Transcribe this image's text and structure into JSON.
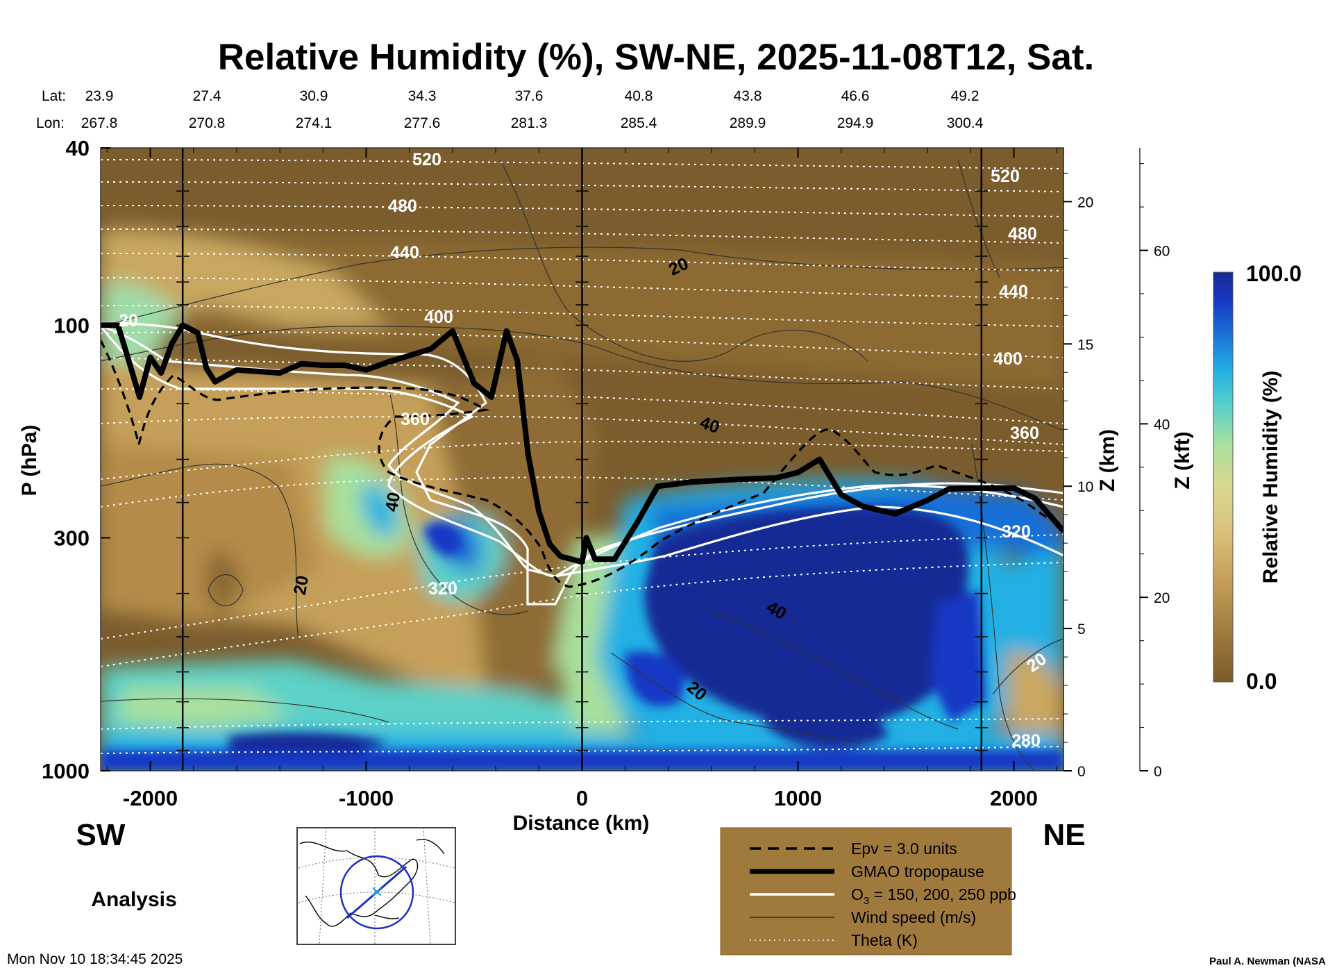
{
  "chart_data": {
    "type": "heatmap",
    "title": "Relative Humidity (%), SW-NE, 2025-11-08T12, Sat.",
    "xlabel": "Distance (km)",
    "ylabel": "P (hPa)",
    "ylabel_right_km": "Z (km)",
    "ylabel_right_kft": "Z (kft)",
    "xlim": [
      -2230,
      2230
    ],
    "ylim_hpa": [
      1000,
      40
    ],
    "x_ticks": [
      {
        "value": -2000,
        "label": "-2000"
      },
      {
        "value": -1000,
        "label": "-1000"
      },
      {
        "value": 0,
        "label": "0"
      },
      {
        "value": 1000,
        "label": "1000"
      },
      {
        "value": 2000,
        "label": "2000"
      }
    ],
    "y_ticks_hpa": [
      {
        "value": 40,
        "label": "40"
      },
      {
        "value": 100,
        "label": "100"
      },
      {
        "value": 300,
        "label": "300"
      },
      {
        "value": 1000,
        "label": "1000"
      }
    ],
    "z_km_ticks": [
      {
        "value": 0,
        "label": "0"
      },
      {
        "value": 5,
        "label": "5"
      },
      {
        "value": 10,
        "label": "10"
      },
      {
        "value": 15,
        "label": "15"
      },
      {
        "value": 20,
        "label": "20"
      }
    ],
    "z_kft_ticks": [
      {
        "value": 0,
        "label": "0"
      },
      {
        "value": 20,
        "label": "20"
      },
      {
        "value": 40,
        "label": "40"
      },
      {
        "value": 60,
        "label": "60"
      }
    ],
    "lat_label": "Lat:",
    "lon_label": "Lon:",
    "latlon": [
      {
        "lat": "23.9",
        "lon": "267.8"
      },
      {
        "lat": "27.4",
        "lon": "270.8"
      },
      {
        "lat": "30.9",
        "lon": "274.1"
      },
      {
        "lat": "34.3",
        "lon": "277.6"
      },
      {
        "lat": "37.6",
        "lon": "281.3"
      },
      {
        "lat": "40.8",
        "lon": "285.4"
      },
      {
        "lat": "43.8",
        "lon": "289.9"
      },
      {
        "lat": "46.6",
        "lon": "294.9"
      },
      {
        "lat": "49.2",
        "lon": "300.4"
      }
    ],
    "vertical_markers_km": [
      -1850,
      0,
      1850
    ],
    "theta_levels": [
      {
        "value": 280,
        "label": "280"
      },
      {
        "value": 320,
        "label": "320"
      },
      {
        "value": 360,
        "label": "360"
      },
      {
        "value": 400,
        "label": "400"
      },
      {
        "value": 440,
        "label": "440"
      },
      {
        "value": 480,
        "label": "480"
      },
      {
        "value": 520,
        "label": "520"
      }
    ],
    "wind_speed_labels": [
      "20",
      "20",
      "20",
      "40",
      "40",
      "40",
      "20",
      "20"
    ],
    "tropopause_hpa": [
      [
        -2230,
        100
      ],
      [
        -2150,
        100
      ],
      [
        -2100,
        120
      ],
      [
        -2050,
        145
      ],
      [
        -2000,
        118
      ],
      [
        -1950,
        128
      ],
      [
        -1900,
        110
      ],
      [
        -1850,
        100
      ],
      [
        -1780,
        104
      ],
      [
        -1740,
        125
      ],
      [
        -1700,
        134
      ],
      [
        -1600,
        126
      ],
      [
        -1500,
        127
      ],
      [
        -1400,
        128
      ],
      [
        -1300,
        122
      ],
      [
        -1200,
        123
      ],
      [
        -1100,
        123
      ],
      [
        -1000,
        126
      ],
      [
        -900,
        121
      ],
      [
        -800,
        117
      ],
      [
        -700,
        113
      ],
      [
        -600,
        103
      ],
      [
        -500,
        135
      ],
      [
        -420,
        145
      ],
      [
        -350,
        103
      ],
      [
        -300,
        120
      ],
      [
        -250,
        195
      ],
      [
        -200,
        262
      ],
      [
        -150,
        310
      ],
      [
        -100,
        330
      ],
      [
        -50,
        335
      ],
      [
        0,
        340
      ],
      [
        20,
        300
      ],
      [
        60,
        335
      ],
      [
        150,
        335
      ],
      [
        250,
        280
      ],
      [
        350,
        230
      ],
      [
        500,
        225
      ],
      [
        700,
        222
      ],
      [
        900,
        220
      ],
      [
        1000,
        214
      ],
      [
        1100,
        200
      ],
      [
        1200,
        240
      ],
      [
        1300,
        255
      ],
      [
        1450,
        265
      ],
      [
        1600,
        247
      ],
      [
        1700,
        233
      ],
      [
        1850,
        232
      ],
      [
        2000,
        232
      ],
      [
        2100,
        245
      ],
      [
        2230,
        290
      ]
    ],
    "colorbar": {
      "label": "Relative Humidity (%)",
      "min": 0.0,
      "max": 100.0,
      "min_label": "0.0",
      "max_label": "100.0",
      "colors": [
        "#7a5b2a",
        "#a07a3c",
        "#c6a05a",
        "#dcc27c",
        "#d9d890",
        "#a8e09c",
        "#5cd2c8",
        "#22b0e4",
        "#1970d8",
        "#1838c4",
        "#152a96"
      ]
    },
    "legend": [
      {
        "label": "Epv = 3.0 units",
        "style": "dashed"
      },
      {
        "label": "GMAO tropopause",
        "style": "thick"
      },
      {
        "label": "O",
        "sub": "3",
        "suffix": " = 150, 200, 250 ppb",
        "style": "white"
      },
      {
        "label": "Wind speed (m/s)",
        "style": "thin"
      },
      {
        "label": "Theta (K)",
        "style": "dotted"
      }
    ],
    "corner_sw": "SW",
    "corner_ne": "NE",
    "analysis_label": "Analysis",
    "timestamp": "Mon Nov 10 18:34:45 2025",
    "credit": "Paul A. Newman (NASA"
  }
}
